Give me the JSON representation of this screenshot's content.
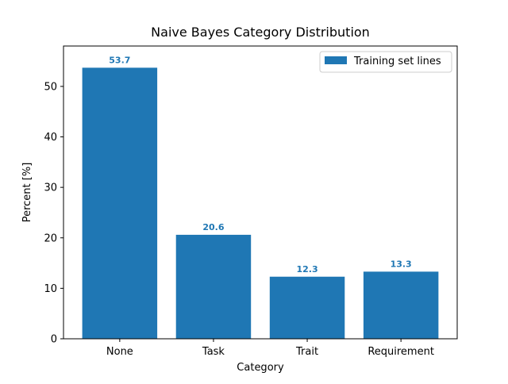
{
  "chart_data": {
    "type": "bar",
    "title": "Naive Bayes Category Distribution",
    "xlabel": "Category",
    "ylabel": "Percent [%]",
    "categories": [
      "None",
      "Task",
      "Trait",
      "Requirement"
    ],
    "series": [
      {
        "name": "Training set lines",
        "values": [
          53.7,
          20.6,
          12.3,
          13.3
        ],
        "color": "#1f77b4"
      }
    ],
    "data_labels": [
      "53.7",
      "20.6",
      "12.3",
      "13.3"
    ],
    "ylim": [
      0,
      58
    ],
    "yticks": [
      0,
      10,
      20,
      30,
      40,
      50
    ],
    "grid": false,
    "legend_position": "top-right"
  }
}
